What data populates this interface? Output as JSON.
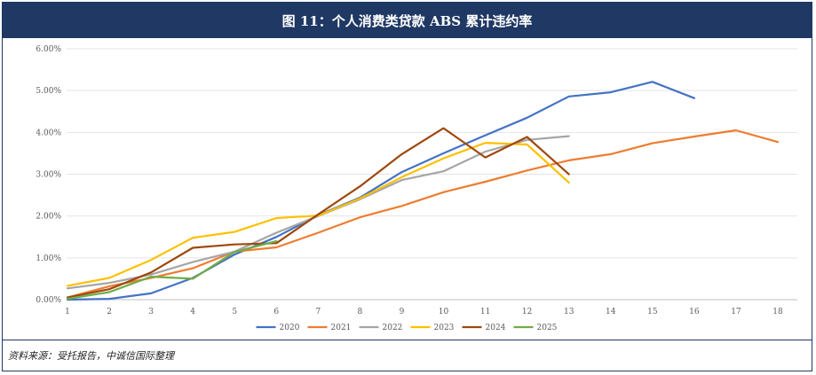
{
  "title": "图 11：个人消费类贷款 ABS 累计违约率",
  "source": "资料来源：受托报告，中诚信国际整理",
  "chart_data": {
    "type": "line",
    "x": [
      1,
      2,
      3,
      4,
      5,
      6,
      7,
      8,
      9,
      10,
      11,
      12,
      13,
      14,
      15,
      16,
      17,
      18
    ],
    "ylim": [
      0,
      6
    ],
    "ytick_labels": [
      "0.00%",
      "1.00%",
      "2.00%",
      "3.00%",
      "4.00%",
      "5.00%",
      "6.00%"
    ],
    "grid": true,
    "legend_position": "bottom",
    "series": [
      {
        "name": "2020",
        "color": "#4472c4",
        "values": [
          0.0,
          0.02,
          0.15,
          0.52,
          1.08,
          1.5,
          2.02,
          2.44,
          3.05,
          3.5,
          3.93,
          4.35,
          4.86,
          4.96,
          5.21,
          4.82,
          null,
          null
        ]
      },
      {
        "name": "2021",
        "color": "#ed7d31",
        "values": [
          0.05,
          0.32,
          0.52,
          0.75,
          1.15,
          1.25,
          1.6,
          1.97,
          2.24,
          2.57,
          2.82,
          3.09,
          3.33,
          3.48,
          3.74,
          3.9,
          4.05,
          3.77
        ]
      },
      {
        "name": "2022",
        "color": "#a5a5a5",
        "values": [
          0.27,
          0.4,
          0.6,
          0.9,
          1.15,
          1.6,
          2.0,
          2.4,
          2.86,
          3.07,
          3.54,
          3.82,
          3.91,
          null,
          null,
          null,
          null,
          null
        ]
      },
      {
        "name": "2023",
        "color": "#ffc000",
        "values": [
          0.33,
          0.52,
          0.95,
          1.48,
          1.62,
          1.95,
          2.01,
          2.42,
          2.93,
          3.38,
          3.75,
          3.71,
          2.8,
          null,
          null,
          null,
          null,
          null
        ]
      },
      {
        "name": "2024",
        "color": "#9e480e",
        "values": [
          0.05,
          0.25,
          0.65,
          1.24,
          1.32,
          1.35,
          2.04,
          2.71,
          3.48,
          4.1,
          3.4,
          3.89,
          3.0,
          null,
          null,
          null,
          null,
          null
        ]
      },
      {
        "name": "2025",
        "color": "#70ad47",
        "values": [
          0.02,
          0.18,
          0.55,
          0.5,
          1.14,
          1.4,
          null,
          null,
          null,
          null,
          null,
          null,
          null,
          null,
          null,
          null,
          null,
          null
        ]
      }
    ]
  }
}
